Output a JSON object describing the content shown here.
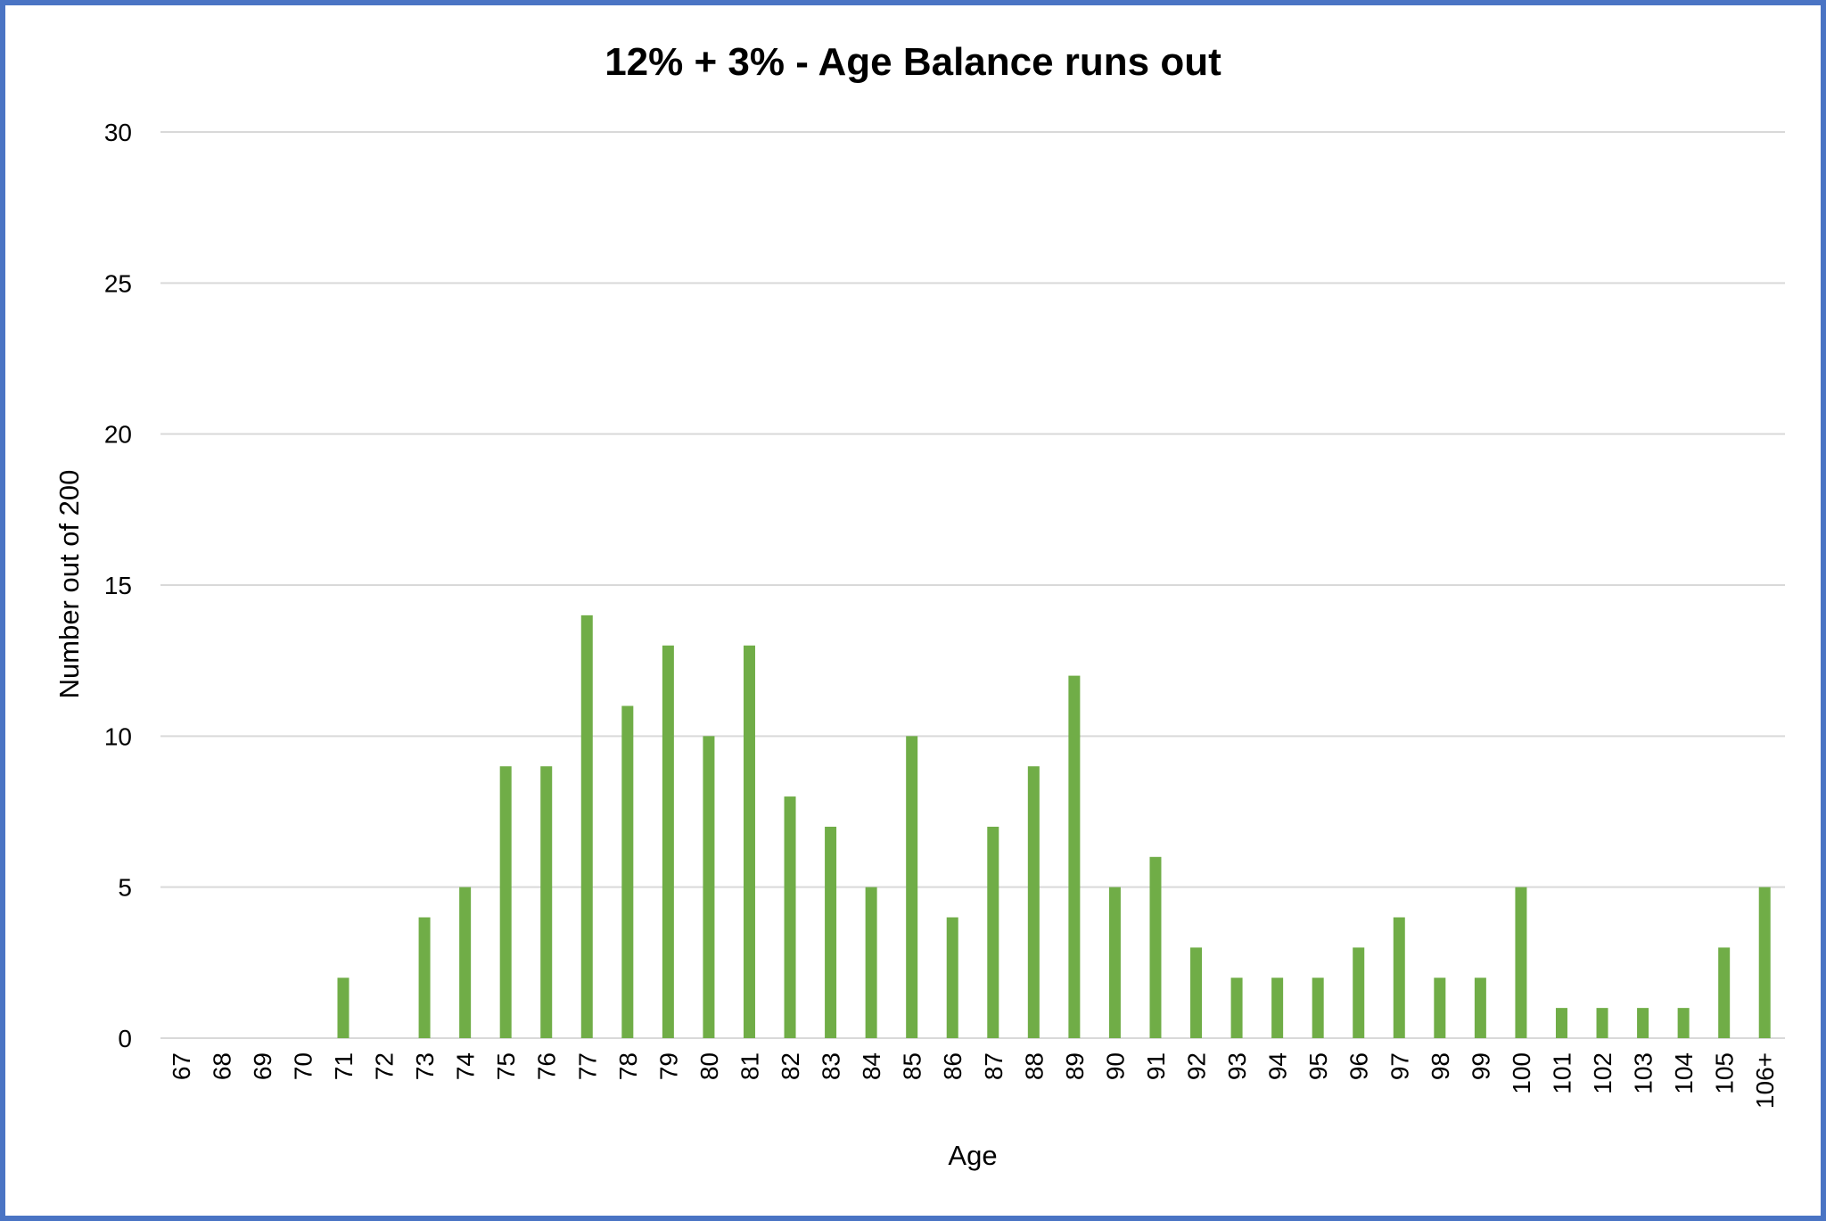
{
  "chart_data": {
    "type": "bar",
    "title": "12% + 3% - Age Balance runs out",
    "xlabel": "Age",
    "ylabel": "Number out of 200",
    "ylim": [
      0,
      30
    ],
    "yticks": [
      0,
      5,
      10,
      15,
      20,
      25,
      30
    ],
    "grid": true,
    "legend": "none",
    "bar_color": "#70ad47",
    "categories": [
      "67",
      "68",
      "69",
      "70",
      "71",
      "72",
      "73",
      "74",
      "75",
      "76",
      "77",
      "78",
      "79",
      "80",
      "81",
      "82",
      "83",
      "84",
      "85",
      "86",
      "87",
      "88",
      "89",
      "90",
      "91",
      "92",
      "93",
      "94",
      "95",
      "96",
      "97",
      "98",
      "99",
      "100",
      "101",
      "102",
      "103",
      "104",
      "105",
      "106+"
    ],
    "values": [
      0,
      0,
      0,
      0,
      2,
      0,
      4,
      5,
      9,
      9,
      14,
      11,
      13,
      10,
      13,
      8,
      7,
      5,
      10,
      4,
      7,
      9,
      12,
      5,
      6,
      3,
      2,
      2,
      2,
      3,
      4,
      2,
      2,
      5,
      1,
      1,
      1,
      1,
      3,
      5
    ]
  }
}
